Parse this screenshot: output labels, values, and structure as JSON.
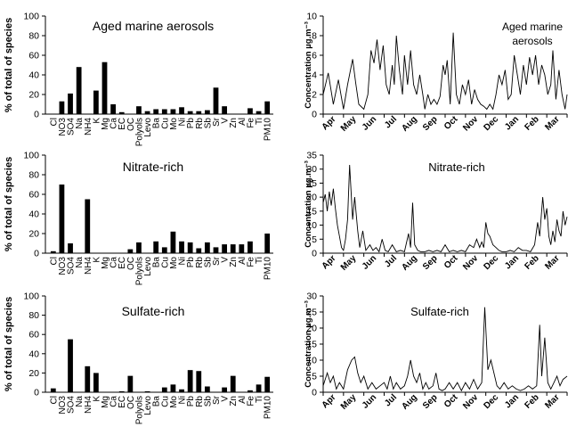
{
  "chart_data": [
    {
      "type": "bar",
      "title": "Aged marine aerosols",
      "ylabel": "% of total of species",
      "ylim": [
        0,
        100
      ],
      "yticks": [
        0,
        20,
        40,
        60,
        80,
        100
      ],
      "categories": [
        "Cl",
        "NO3",
        "SO4",
        "Na",
        "NH4",
        "K",
        "Mg",
        "Ca",
        "EC",
        "OC",
        "Polyols",
        "Levo",
        "Ba",
        "Cu",
        "Mo",
        "Ni",
        "Pb",
        "Rb",
        "Sb",
        "Sr",
        "V",
        "Zn",
        "Al",
        "Fe",
        "Ti",
        "PM10"
      ],
      "values": [
        0,
        13,
        21,
        48,
        0,
        24,
        53,
        10,
        2,
        0,
        8,
        3,
        5,
        5,
        5,
        7,
        3,
        3,
        4,
        27,
        8,
        0,
        0,
        6,
        3,
        13
      ],
      "bar_color": "#000000"
    },
    {
      "type": "line",
      "title": "Aged marine aerosols",
      "ylabel": "Concentration µg.m⁻³",
      "ylim": [
        0,
        10
      ],
      "yticks": [
        0,
        2,
        4,
        6,
        8,
        10
      ],
      "xticklabels": [
        "Apr",
        "May",
        "Jun",
        "Jul",
        "Aug",
        "Sep",
        "Oct",
        "Nov",
        "Dec",
        "Jan",
        "Feb",
        "Mar"
      ],
      "x_range": [
        0,
        12
      ],
      "points": [
        [
          0,
          2
        ],
        [
          0.25,
          4.2
        ],
        [
          0.5,
          1
        ],
        [
          0.75,
          3.5
        ],
        [
          1,
          0.5
        ],
        [
          1.2,
          3
        ],
        [
          1.45,
          5.6
        ],
        [
          1.6,
          3.2
        ],
        [
          1.75,
          1
        ],
        [
          2,
          0.5
        ],
        [
          2.2,
          2
        ],
        [
          2.35,
          6.5
        ],
        [
          2.5,
          5.2
        ],
        [
          2.65,
          7.6
        ],
        [
          2.8,
          4.5
        ],
        [
          2.95,
          7
        ],
        [
          3.1,
          3
        ],
        [
          3.25,
          2
        ],
        [
          3.4,
          5
        ],
        [
          3.5,
          3
        ],
        [
          3.6,
          8
        ],
        [
          3.75,
          4.5
        ],
        [
          3.9,
          2
        ],
        [
          4,
          6
        ],
        [
          4.15,
          3
        ],
        [
          4.3,
          6.5
        ],
        [
          4.45,
          3
        ],
        [
          4.6,
          2
        ],
        [
          4.75,
          4
        ],
        [
          4.9,
          2
        ],
        [
          5,
          0.5
        ],
        [
          5.15,
          2
        ],
        [
          5.3,
          1
        ],
        [
          5.45,
          1.5
        ],
        [
          5.6,
          1
        ],
        [
          5.75,
          1.8
        ],
        [
          5.9,
          5
        ],
        [
          6,
          4
        ],
        [
          6.1,
          5.5
        ],
        [
          6.25,
          1
        ],
        [
          6.4,
          8.3
        ],
        [
          6.55,
          2
        ],
        [
          6.7,
          1
        ],
        [
          6.85,
          3
        ],
        [
          7,
          2
        ],
        [
          7.15,
          3.5
        ],
        [
          7.3,
          1
        ],
        [
          7.45,
          2.5
        ],
        [
          7.6,
          1.5
        ],
        [
          7.75,
          1
        ],
        [
          7.9,
          0.8
        ],
        [
          8.05,
          0.5
        ],
        [
          8.2,
          1
        ],
        [
          8.35,
          0.5
        ],
        [
          8.5,
          2
        ],
        [
          8.65,
          4
        ],
        [
          8.8,
          3
        ],
        [
          8.95,
          4.5
        ],
        [
          9.1,
          1.5
        ],
        [
          9.25,
          2
        ],
        [
          9.4,
          6
        ],
        [
          9.55,
          4
        ],
        [
          9.7,
          2
        ],
        [
          9.85,
          5
        ],
        [
          10,
          3
        ],
        [
          10.15,
          5.8
        ],
        [
          10.3,
          4
        ],
        [
          10.45,
          6
        ],
        [
          10.6,
          3
        ],
        [
          10.75,
          5
        ],
        [
          10.9,
          4
        ],
        [
          11.05,
          2
        ],
        [
          11.2,
          3
        ],
        [
          11.3,
          6.5
        ],
        [
          11.45,
          1.5
        ],
        [
          11.6,
          4.5
        ],
        [
          11.75,
          2
        ],
        [
          11.9,
          0.5
        ],
        [
          12,
          2
        ]
      ]
    },
    {
      "type": "bar",
      "title": "Nitrate-rich",
      "ylabel": "% of total of species",
      "ylim": [
        0,
        100
      ],
      "yticks": [
        0,
        20,
        40,
        60,
        80,
        100
      ],
      "categories": [
        "Cl",
        "NO3",
        "SO4",
        "Na",
        "NH4",
        "K",
        "Mg",
        "Ca",
        "EC",
        "OC",
        "Polyols",
        "Levo",
        "Ba",
        "Cu",
        "Mo",
        "Ni",
        "Pb",
        "Rb",
        "Sb",
        "Sr",
        "V",
        "Zn",
        "Al",
        "Fe",
        "Ti",
        "PM10"
      ],
      "values": [
        2,
        70,
        10,
        0,
        55,
        0,
        0,
        0,
        0,
        4,
        11,
        0,
        12,
        6,
        22,
        12,
        11,
        5,
        11,
        6,
        9,
        9,
        9,
        12,
        0,
        20
      ],
      "bar_color": "#000000"
    },
    {
      "type": "line",
      "title": "Nitrate-rich",
      "ylabel": "Concentration µg.m⁻³",
      "ylim": [
        0,
        35
      ],
      "yticks": [
        0,
        5,
        10,
        15,
        20,
        25,
        30,
        35
      ],
      "xticklabels": [
        "Apr",
        "May",
        "Jun",
        "Jul",
        "Aug",
        "Sep",
        "Oct",
        "Nov",
        "Dec",
        "Jan",
        "Feb",
        "Mar"
      ],
      "x_range": [
        0,
        12
      ],
      "points": [
        [
          0,
          18
        ],
        [
          0.1,
          21
        ],
        [
          0.2,
          15
        ],
        [
          0.3,
          22
        ],
        [
          0.4,
          17
        ],
        [
          0.5,
          23
        ],
        [
          0.6,
          16
        ],
        [
          0.7,
          10
        ],
        [
          0.8,
          6
        ],
        [
          0.9,
          2
        ],
        [
          1,
          1
        ],
        [
          1.1,
          5
        ],
        [
          1.2,
          12
        ],
        [
          1.3,
          31.5
        ],
        [
          1.45,
          12
        ],
        [
          1.55,
          20
        ],
        [
          1.7,
          8
        ],
        [
          1.8,
          2
        ],
        [
          1.95,
          8
        ],
        [
          2.1,
          1
        ],
        [
          2.3,
          3
        ],
        [
          2.45,
          1
        ],
        [
          2.6,
          2
        ],
        [
          2.75,
          0.5
        ],
        [
          2.9,
          5
        ],
        [
          3.05,
          1
        ],
        [
          3.2,
          0.5
        ],
        [
          3.4,
          3
        ],
        [
          3.6,
          0.5
        ],
        [
          3.8,
          1
        ],
        [
          4,
          0.5
        ],
        [
          4.2,
          7
        ],
        [
          4.3,
          2
        ],
        [
          4.4,
          18
        ],
        [
          4.5,
          3
        ],
        [
          4.65,
          1
        ],
        [
          4.8,
          0.5
        ],
        [
          5,
          0.5
        ],
        [
          5.2,
          1
        ],
        [
          5.4,
          0.5
        ],
        [
          5.6,
          1
        ],
        [
          5.8,
          0.5
        ],
        [
          6,
          3
        ],
        [
          6.2,
          0.5
        ],
        [
          6.4,
          1
        ],
        [
          6.6,
          0.5
        ],
        [
          6.8,
          1
        ],
        [
          7,
          0.5
        ],
        [
          7.2,
          3
        ],
        [
          7.4,
          2
        ],
        [
          7.55,
          5
        ],
        [
          7.7,
          2
        ],
        [
          7.8,
          4
        ],
        [
          7.9,
          2
        ],
        [
          8,
          11
        ],
        [
          8.1,
          7
        ],
        [
          8.2,
          6
        ],
        [
          8.35,
          3
        ],
        [
          8.5,
          2
        ],
        [
          8.65,
          1
        ],
        [
          8.8,
          0.5
        ],
        [
          9,
          0.5
        ],
        [
          9.2,
          1
        ],
        [
          9.4,
          0.5
        ],
        [
          9.6,
          2
        ],
        [
          9.8,
          1
        ],
        [
          10,
          1
        ],
        [
          10.2,
          0.5
        ],
        [
          10.4,
          3
        ],
        [
          10.55,
          11
        ],
        [
          10.65,
          6
        ],
        [
          10.8,
          20
        ],
        [
          10.9,
          12
        ],
        [
          11,
          16
        ],
        [
          11.1,
          6
        ],
        [
          11.2,
          3
        ],
        [
          11.3,
          8
        ],
        [
          11.4,
          4
        ],
        [
          11.5,
          12
        ],
        [
          11.6,
          8
        ],
        [
          11.7,
          6
        ],
        [
          11.8,
          15
        ],
        [
          11.9,
          10
        ],
        [
          12,
          13
        ]
      ]
    },
    {
      "type": "bar",
      "title": "Sulfate-rich",
      "ylabel": "% of total of species",
      "ylim": [
        0,
        100
      ],
      "yticks": [
        0,
        20,
        40,
        60,
        80,
        100
      ],
      "categories": [
        "Cl",
        "NO3",
        "SO4",
        "Na",
        "NH4",
        "K",
        "Mg",
        "Ca",
        "EC",
        "OC",
        "Polyols",
        "Levo",
        "Ba",
        "Cu",
        "Mo",
        "Ni",
        "Pb",
        "Rb",
        "Sb",
        "Sr",
        "V",
        "Zn",
        "Al",
        "Fe",
        "Ti",
        "PM10"
      ],
      "values": [
        4,
        0,
        55,
        0,
        27,
        20,
        0,
        0,
        1,
        17,
        0,
        1,
        0,
        5,
        8,
        3,
        23,
        22,
        6,
        0,
        5,
        17,
        0,
        2,
        8,
        16
      ],
      "bar_color": "#000000"
    },
    {
      "type": "line",
      "title": "Sulfate-rich",
      "ylabel": "Concentration µg.m⁻³",
      "ylim": [
        0,
        30
      ],
      "yticks": [
        0,
        5,
        10,
        15,
        20,
        25,
        30
      ],
      "xticklabels": [
        "Apr",
        "May",
        "Jun",
        "Jul",
        "Aug",
        "Sep",
        "Oct",
        "Nov",
        "Dec",
        "Jan",
        "Feb",
        "Mar"
      ],
      "x_range": [
        0,
        12
      ],
      "points": [
        [
          0,
          2
        ],
        [
          0.2,
          6
        ],
        [
          0.35,
          3
        ],
        [
          0.5,
          5
        ],
        [
          0.65,
          1
        ],
        [
          0.8,
          3
        ],
        [
          1,
          1
        ],
        [
          1.2,
          7
        ],
        [
          1.4,
          10
        ],
        [
          1.55,
          11
        ],
        [
          1.7,
          6
        ],
        [
          1.85,
          3
        ],
        [
          2,
          5
        ],
        [
          2.2,
          1
        ],
        [
          2.4,
          3
        ],
        [
          2.6,
          1
        ],
        [
          2.8,
          2
        ],
        [
          3,
          3
        ],
        [
          3.15,
          1
        ],
        [
          3.3,
          5
        ],
        [
          3.45,
          1
        ],
        [
          3.6,
          3
        ],
        [
          3.8,
          1
        ],
        [
          4,
          2
        ],
        [
          4.15,
          5
        ],
        [
          4.3,
          10
        ],
        [
          4.45,
          5
        ],
        [
          4.6,
          3
        ],
        [
          4.75,
          6
        ],
        [
          4.9,
          1
        ],
        [
          5.05,
          3
        ],
        [
          5.2,
          1
        ],
        [
          5.4,
          2
        ],
        [
          5.55,
          6
        ],
        [
          5.7,
          1
        ],
        [
          5.85,
          0.5
        ],
        [
          6,
          1
        ],
        [
          6.2,
          3
        ],
        [
          6.4,
          1
        ],
        [
          6.6,
          3
        ],
        [
          6.8,
          0.5
        ],
        [
          7,
          3
        ],
        [
          7.2,
          1
        ],
        [
          7.4,
          4
        ],
        [
          7.6,
          1
        ],
        [
          7.8,
          3
        ],
        [
          7.95,
          26.5
        ],
        [
          8.1,
          7
        ],
        [
          8.25,
          10
        ],
        [
          8.4,
          6
        ],
        [
          8.55,
          2
        ],
        [
          8.7,
          1
        ],
        [
          8.9,
          3
        ],
        [
          9.1,
          1
        ],
        [
          9.3,
          2
        ],
        [
          9.5,
          1
        ],
        [
          9.7,
          0.5
        ],
        [
          9.9,
          1
        ],
        [
          10.1,
          2
        ],
        [
          10.3,
          1
        ],
        [
          10.5,
          2
        ],
        [
          10.65,
          21
        ],
        [
          10.75,
          5
        ],
        [
          10.9,
          17
        ],
        [
          11.05,
          3
        ],
        [
          11.2,
          1
        ],
        [
          11.35,
          3
        ],
        [
          11.5,
          5
        ],
        [
          11.65,
          2
        ],
        [
          11.8,
          4
        ],
        [
          12,
          5
        ]
      ]
    }
  ]
}
